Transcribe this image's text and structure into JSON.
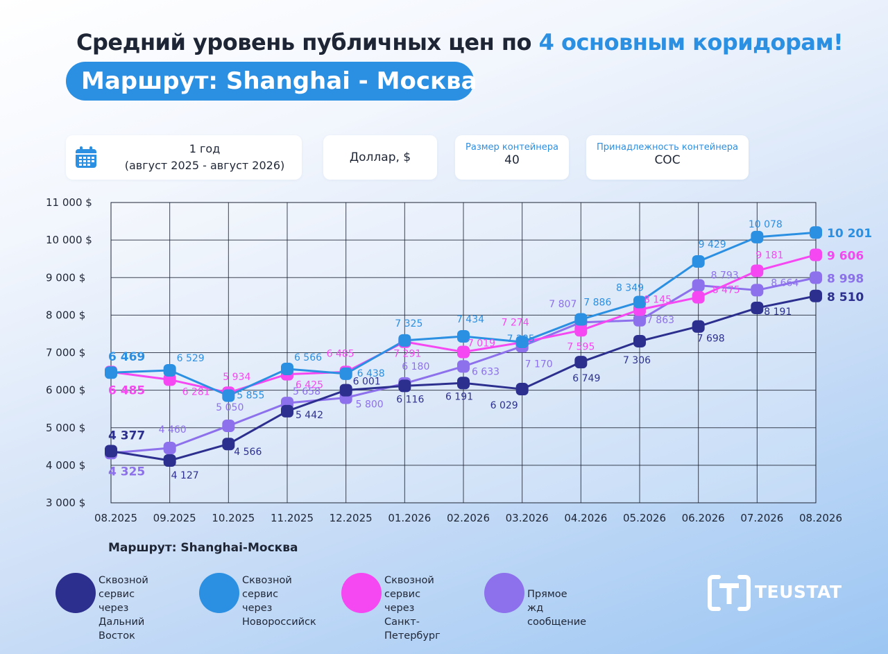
{
  "header": {
    "title_main": "Средний уровень публичных цен по ",
    "title_accent": "4 основным коридорам!",
    "route": "Маршрут: Shanghai - Москва"
  },
  "filters": {
    "period_line1": "1 год",
    "period_line2": "(август 2025 - август 2026)",
    "currency": "Доллар, $",
    "size_label": "Размер контейнера",
    "size_value": "40",
    "own_label": "Принадлежность контейнера",
    "own_value": "СОС"
  },
  "colors": {
    "far_east": "#2d2f8e",
    "novorossiysk": "#2b8fe2",
    "spb": "#f548f2",
    "rail": "#8d70ec"
  },
  "chart_data": {
    "type": "line",
    "x": [
      "08.2025",
      "09.2025",
      "10.2025",
      "11.2025",
      "12.2025",
      "01.2026",
      "02.2026",
      "03.2026",
      "04.2026",
      "05.2026",
      "06.2026",
      "07.2026",
      "08.2026"
    ],
    "y_ticks": [
      "3 000 $",
      "4 000 $",
      "5 000 $",
      "6 000 $",
      "7 000 $",
      "8 000 $",
      "9 000 $",
      "10 000 $",
      "11 000 $"
    ],
    "ylim": [
      3000,
      11000
    ],
    "grid": true,
    "series": [
      {
        "name": "Сквозной сервис через Дальний Восток",
        "key": "far_east",
        "values": [
          4377,
          4127,
          4566,
          5442,
          6001,
          6116,
          6191,
          6029,
          6749,
          7306,
          7698,
          8191,
          8510
        ],
        "labels": [
          "4 377",
          "4 127",
          "4 566",
          "5 442",
          "6 001",
          "6 116",
          "6 191",
          "6 029",
          "6 749",
          "7 306",
          "7 698",
          "8 191",
          "8 510"
        ]
      },
      {
        "name": "Сквозной сервис через Новороссийск",
        "key": "novorossiysk",
        "values": [
          6469,
          6529,
          5855,
          6566,
          6438,
          7325,
          7434,
          7285,
          7886,
          8349,
          9429,
          10078,
          10201
        ],
        "labels": [
          "6 469",
          "6 529",
          "5 855",
          "6 566",
          "6 438",
          "7 325",
          "7 434",
          "7 285",
          "7 886",
          "8 349",
          "9 429",
          "10 078",
          "10 201"
        ]
      },
      {
        "name": "Сквозной сервис через Санкт-Петербург",
        "key": "spb",
        "values": [
          6485,
          6281,
          5934,
          6425,
          6485,
          7291,
          7019,
          7274,
          7595,
          8145,
          8475,
          9181,
          9606
        ],
        "labels": [
          "6 485",
          "6 281",
          "5 934",
          "6 425",
          "6 485",
          "7 291",
          "7 019",
          "7 274",
          "7 595",
          "8 145",
          "8 475",
          "9 181",
          "9 606"
        ]
      },
      {
        "name": "Прямое жд сообщение",
        "key": "rail",
        "values": [
          4325,
          4460,
          5050,
          5658,
          5800,
          6180,
          6633,
          7170,
          7807,
          7863,
          8793,
          8664,
          8998
        ],
        "labels": [
          "4 325",
          "4 460",
          "5 050",
          "5 658",
          "5 800",
          "6 180",
          "6 633",
          "7 170",
          "7 807",
          "7 863",
          "8 793",
          "8 664",
          "8 998"
        ]
      }
    ]
  },
  "footer": {
    "route_label": "Маршрут: Shanghai-Москва",
    "legend": [
      {
        "key": "far_east",
        "lines": [
          "Сквозной сервис",
          "через Дальний",
          "Восток"
        ]
      },
      {
        "key": "novorossiysk",
        "lines": [
          "Сквозной сервис",
          "через",
          "Новороссийск"
        ]
      },
      {
        "key": "spb",
        "lines": [
          "Сквозной сервис",
          "через Санкт-",
          "Петербург"
        ]
      },
      {
        "key": "rail",
        "lines": [
          "Прямое жд сообщение"
        ]
      }
    ],
    "brand": "TEUSTAT"
  }
}
